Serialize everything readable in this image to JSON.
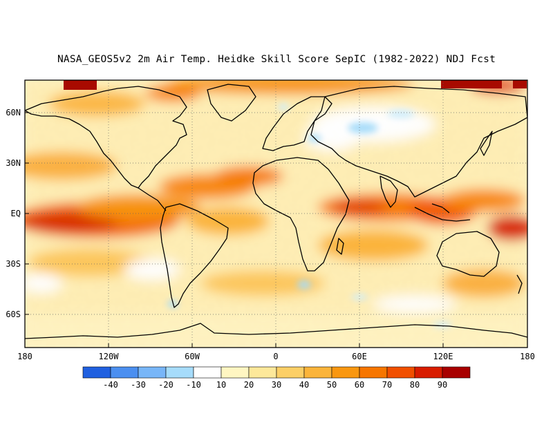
{
  "title": "NASA_GEOS5v2 2m Air Temp. Heidke Skill Score SepIC (1982-2022) NDJ Fcst",
  "map": {
    "projection": "equirectangular",
    "lon_range": [
      -180,
      180
    ],
    "lat_range": [
      -80,
      80
    ],
    "lat_labels": [
      {
        "lat": 60,
        "text": "60N"
      },
      {
        "lat": 30,
        "text": "30N"
      },
      {
        "lat": 0,
        "text": "EQ"
      },
      {
        "lat": -30,
        "text": "30S"
      },
      {
        "lat": -60,
        "text": "60S"
      }
    ],
    "lon_labels": [
      {
        "lon": -180,
        "text": "180"
      },
      {
        "lon": -120,
        "text": "120W"
      },
      {
        "lon": -60,
        "text": "60W"
      },
      {
        "lon": 0,
        "text": "0"
      },
      {
        "lon": 60,
        "text": "60E"
      },
      {
        "lon": 120,
        "text": "120E"
      },
      {
        "lon": 180,
        "text": "180"
      }
    ],
    "gridlines": "dotted"
  },
  "colorbar": {
    "labels": [
      "-40",
      "-30",
      "-20",
      "-10",
      "10",
      "20",
      "30",
      "40",
      "50",
      "60",
      "70",
      "80",
      "90"
    ],
    "colors": [
      "#2b63d9",
      "#4a8ff0",
      "#72b3f7",
      "#9fd2fb",
      "#c8ecfd",
      "#ffffff",
      "#fff9c4",
      "#fde49a",
      "#fccf6a",
      "#fbb43c",
      "#fb9a12",
      "#f97a00",
      "#f45200",
      "#e02400",
      "#b10800",
      "#8a0000"
    ]
  },
  "colorbar_colors": [
    "#2060e0",
    "#4b8ff0",
    "#78b6f8",
    "#a6dcfb",
    "#ffffff",
    "#fff6c2",
    "#fde89a",
    "#fccf66",
    "#fbb43a",
    "#f99710",
    "#f77600",
    "#f14f00",
    "#d81c00",
    "#a80000"
  ],
  "fields": {
    "positive_colors": [
      "#fff3c0",
      "#fde08e",
      "#fcc65c",
      "#faa52c",
      "#f8830a",
      "#f25a00",
      "#d82600",
      "#a80a00"
    ],
    "negative_colors": [
      "#cfeefd",
      "#a6dcfb",
      "#78b6f8"
    ]
  }
}
